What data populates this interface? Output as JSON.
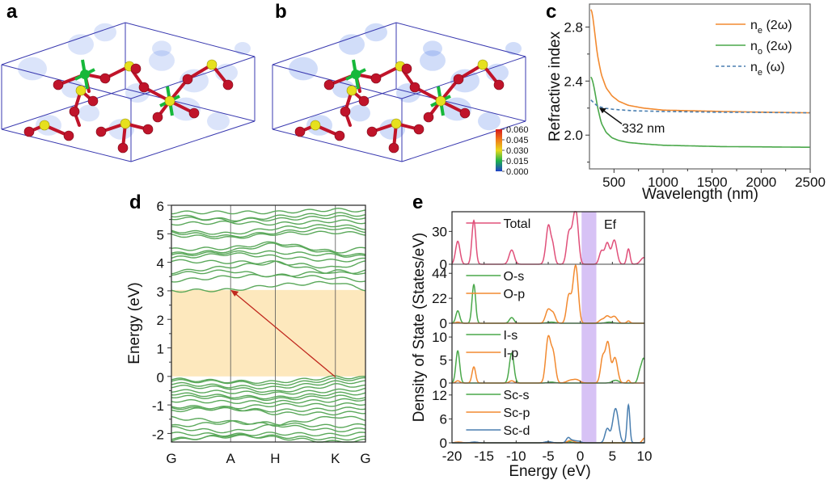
{
  "figure": {
    "panels": {
      "a": {
        "label": "a"
      },
      "b": {
        "label": "b"
      },
      "c": {
        "label": "c"
      },
      "d": {
        "label": "d"
      },
      "e": {
        "label": "e"
      }
    },
    "colorbar": {
      "ticks": [
        "0.060",
        "0.045",
        "0.030",
        "0.015",
        "0.000"
      ],
      "colors": [
        "#d7191c",
        "#f07a1a",
        "#e8d81c",
        "#1db34a",
        "#2040c8"
      ]
    },
    "atom_colors": {
      "O": "#c0142a",
      "I": "#e6e01e",
      "Sc": "#16b83a",
      "box": "#3a3ab0",
      "density": "#5a86e8"
    }
  },
  "chart_data": [
    {
      "id": "c",
      "type": "line",
      "title": "",
      "xlabel": "Wavelength (nm)",
      "ylabel": "Refractive index",
      "xlim": [
        250,
        2500
      ],
      "ylim": [
        1.75,
        2.97
      ],
      "xticks": [
        500,
        1000,
        1500,
        2000,
        2500
      ],
      "xtick_labels": [
        "500",
        "1000",
        "1500",
        "2000",
        "2500"
      ],
      "yticks": [
        2.0,
        2.4,
        2.8
      ],
      "ytick_labels": [
        "2.0",
        "2.4",
        "2.8"
      ],
      "legend_position": "top-right",
      "series": [
        {
          "name": "n_e (2ω)",
          "label_main": "n",
          "label_sub": "e",
          "label_rest": " (2ω)",
          "color": "#f28a30",
          "dash": false,
          "x": [
            265,
            280,
            300,
            330,
            370,
            420,
            480,
            550,
            650,
            800,
            1000,
            1300,
            1600,
            2000,
            2500
          ],
          "y": [
            2.93,
            2.9,
            2.78,
            2.6,
            2.45,
            2.35,
            2.29,
            2.25,
            2.22,
            2.2,
            2.185,
            2.18,
            2.175,
            2.17,
            2.165
          ]
        },
        {
          "name": "n_o (2ω)",
          "label_main": "n",
          "label_sub": "o",
          "label_rest": " (2ω)",
          "color": "#4aa84a",
          "dash": false,
          "x": [
            265,
            280,
            300,
            332,
            370,
            420,
            480,
            550,
            650,
            800,
            1000,
            1300,
            1600,
            2000,
            2500
          ],
          "y": [
            2.43,
            2.41,
            2.34,
            2.21,
            2.09,
            2.02,
            1.98,
            1.96,
            1.945,
            1.935,
            1.925,
            1.92,
            1.915,
            1.913,
            1.91
          ]
        },
        {
          "name": "n_e (ω)",
          "label_main": "n",
          "label_sub": "e",
          "label_rest": " (ω)",
          "color": "#4a7fb0",
          "dash": true,
          "x": [
            265,
            300,
            332,
            400,
            500,
            700,
            1000,
            1500,
            2000,
            2500
          ],
          "y": [
            2.26,
            2.235,
            2.215,
            2.2,
            2.19,
            2.18,
            2.175,
            2.17,
            2.168,
            2.165
          ]
        }
      ],
      "annotations": [
        {
          "text": "332 nm",
          "x": 332,
          "y": 2.215
        }
      ]
    },
    {
      "id": "d",
      "type": "line",
      "title": "",
      "xlabel": "",
      "ylabel": "Energy (eV)",
      "ylim": [
        -2.3,
        6
      ],
      "yticks": [
        -2,
        -1,
        0,
        1,
        2,
        3,
        4,
        5,
        6
      ],
      "ytick_labels": [
        "-2",
        "-1",
        "0",
        "1",
        "2",
        "3",
        "4",
        "5",
        "6"
      ],
      "kpoints": [
        "G",
        "A",
        "H",
        "K",
        "G"
      ],
      "kpoint_positions": [
        0,
        0.305,
        0.535,
        0.845,
        1.0
      ],
      "band_gap": {
        "from": 0,
        "to": 3.03,
        "color": "#fde8bd"
      },
      "transition_arrow": {
        "from_k": "K",
        "from_e": -0.02,
        "to_k": "A",
        "to_e": 3.03,
        "color": "#c0281e"
      },
      "band_color": "#5aa85a",
      "conduction_bands_at_kpoints": [
        [
          3.0,
          3.03,
          3.2,
          3.3,
          3.05
        ],
        [
          3.35,
          3.5,
          3.55,
          3.45,
          3.35
        ],
        [
          3.6,
          3.7,
          3.5,
          3.7,
          3.6
        ],
        [
          3.65,
          3.85,
          4.0,
          3.6,
          3.7
        ],
        [
          4.05,
          4.0,
          4.0,
          3.8,
          4.0
        ],
        [
          4.15,
          4.3,
          4.2,
          4.05,
          4.1
        ],
        [
          4.25,
          4.35,
          4.35,
          4.25,
          4.2
        ],
        [
          4.3,
          4.4,
          4.65,
          4.3,
          4.25
        ],
        [
          4.45,
          4.5,
          4.7,
          4.35,
          4.5
        ],
        [
          4.95,
          4.85,
          5.0,
          5.05,
          5.0
        ],
        [
          5.05,
          4.9,
          5.05,
          5.2,
          5.1
        ],
        [
          5.1,
          5.0,
          5.2,
          5.3,
          5.2
        ],
        [
          5.35,
          5.4,
          5.35,
          5.45,
          5.4
        ],
        [
          5.55,
          5.5,
          5.5,
          5.6,
          5.55
        ],
        [
          5.65,
          5.45,
          5.6,
          5.7,
          5.65
        ],
        [
          5.75,
          5.75,
          5.75,
          5.85,
          5.8
        ]
      ],
      "valence_bands_at_kpoints": [
        [
          -0.1,
          -0.18,
          -0.2,
          -0.02,
          -0.05
        ],
        [
          -0.15,
          -0.2,
          -0.3,
          -0.1,
          -0.1
        ],
        [
          -0.25,
          -0.35,
          -0.4,
          -0.2,
          -0.2
        ],
        [
          -0.35,
          -0.4,
          -0.55,
          -0.3,
          -0.35
        ],
        [
          -0.5,
          -0.55,
          -0.6,
          -0.5,
          -0.45
        ],
        [
          -0.6,
          -0.7,
          -0.75,
          -0.6,
          -0.6
        ],
        [
          -0.7,
          -0.75,
          -0.8,
          -0.7,
          -0.75
        ],
        [
          -0.85,
          -0.9,
          -0.9,
          -0.85,
          -0.8
        ],
        [
          -1.05,
          -1.1,
          -1.0,
          -1.0,
          -0.95
        ],
        [
          -1.1,
          -1.15,
          -1.2,
          -1.15,
          -1.1
        ],
        [
          -1.2,
          -1.1,
          -1.3,
          -1.3,
          -1.25
        ],
        [
          -1.45,
          -1.6,
          -1.7,
          -1.4,
          -1.5
        ],
        [
          -1.75,
          -1.6,
          -1.65,
          -1.75,
          -1.7
        ],
        [
          -1.8,
          -1.95,
          -1.7,
          -1.9,
          -1.85
        ],
        [
          -2.0,
          -2.05,
          -2.0,
          -2.05,
          -2.0
        ],
        [
          -2.2,
          -2.1,
          -2.1,
          -2.2,
          -2.15
        ],
        [
          -2.25,
          -2.05,
          -2.15,
          -2.3,
          -2.25
        ]
      ]
    },
    {
      "id": "e",
      "type": "line",
      "title": "",
      "xlabel": "Energy (eV)",
      "ylabel": "Density of State (States/eV)",
      "xlim": [
        -20,
        10
      ],
      "xticks": [
        -20,
        -15,
        -10,
        -5,
        0,
        5,
        10
      ],
      "xtick_labels": [
        "-20",
        "-15",
        "-10",
        "-5",
        "0",
        "5",
        "10"
      ],
      "gap_band": {
        "from": 0.2,
        "to": 2.5,
        "color": "#d7c2f5",
        "label": "Ef"
      },
      "subplots": [
        {
          "name": "total",
          "ylim": [
            0,
            48
          ],
          "yticks": [
            0,
            30
          ],
          "ytick_labels": [
            "0",
            "30"
          ],
          "series": [
            {
              "name": "Total",
              "color": "#e0507a",
              "peaks": [
                [
                  -19.1,
                  21,
                  0.35
                ],
                [
                  -16.6,
                  40,
                  0.3
                ],
                [
                  -10.7,
                  13,
                  0.4
                ],
                [
                  -5.2,
                  14,
                  0.35
                ],
                [
                  -4.9,
                  24,
                  0.3
                ],
                [
                  -4.3,
                  17,
                  0.3
                ],
                [
                  -1.8,
                  27,
                  0.35
                ],
                [
                  -1.1,
                  24,
                  0.35
                ],
                [
                  -0.6,
                  39,
                  0.35
                ],
                [
                  3.3,
                  12,
                  0.35
                ],
                [
                  4.2,
                  19,
                  0.35
                ],
                [
                  5.3,
                  22,
                  0.4
                ],
                [
                  7.5,
                  14,
                  0.25
                ],
                [
                  9.9,
                  6,
                  0.5
                ]
              ]
            }
          ]
        },
        {
          "name": "O",
          "ylim": [
            0,
            52
          ],
          "yticks": [
            0,
            22,
            44
          ],
          "ytick_labels": [
            "0",
            "22",
            "44"
          ],
          "series": [
            {
              "name": "O-s",
              "color": "#4aa84a",
              "peaks": [
                [
                  -19.1,
                  11,
                  0.3
                ],
                [
                  -16.6,
                  34,
                  0.28
                ],
                [
                  -10.7,
                  5,
                  0.35
                ],
                [
                  -4.5,
                  1,
                  0.6
                ],
                [
                  4.5,
                  1,
                  0.5
                ]
              ]
            },
            {
              "name": "O-p",
              "color": "#f28a30",
              "peaks": [
                [
                  -19.1,
                  1,
                  0.3
                ],
                [
                  -5.0,
                  12,
                  0.4
                ],
                [
                  -4.2,
                  8,
                  0.35
                ],
                [
                  -1.8,
                  24,
                  0.35
                ],
                [
                  -1.0,
                  22,
                  0.35
                ],
                [
                  -0.6,
                  37,
                  0.35
                ],
                [
                  3.3,
                  3,
                  0.4
                ],
                [
                  4.2,
                  6,
                  0.4
                ],
                [
                  5.3,
                  6,
                  0.45
                ],
                [
                  7.5,
                  2,
                  0.25
                ]
              ]
            }
          ]
        },
        {
          "name": "I",
          "ylim": [
            0,
            13
          ],
          "yticks": [
            0,
            5,
            10
          ],
          "ytick_labels": [
            "0",
            "5",
            "10"
          ],
          "series": [
            {
              "name": "I-s",
              "color": "#4aa84a",
              "peaks": [
                [
                  -19.1,
                  7,
                  0.3
                ],
                [
                  -10.7,
                  6.5,
                  0.35
                ],
                [
                  -4.5,
                  0.2,
                  0.5
                ],
                [
                  5.5,
                  0.6,
                  0.5
                ],
                [
                  9.3,
                  2.5,
                  0.3
                ],
                [
                  9.9,
                  5,
                  0.3
                ]
              ]
            },
            {
              "name": "I-p",
              "color": "#f28a30",
              "peaks": [
                [
                  -19.1,
                  0.5,
                  0.3
                ],
                [
                  -16.6,
                  3.5,
                  0.28
                ],
                [
                  -10.7,
                  0.5,
                  0.35
                ],
                [
                  -5.0,
                  9.8,
                  0.38
                ],
                [
                  -4.2,
                  6,
                  0.35
                ],
                [
                  -1.5,
                  0.6,
                  0.6
                ],
                [
                  -0.5,
                  0.6,
                  0.5
                ],
                [
                  3.5,
                  5.5,
                  0.35
                ],
                [
                  4.3,
                  8.5,
                  0.35
                ],
                [
                  5.4,
                  5.5,
                  0.4
                ],
                [
                  7.5,
                  0.6,
                  0.2
                ]
              ]
            }
          ]
        },
        {
          "name": "Sc",
          "ylim": [
            0,
            15
          ],
          "yticks": [
            0,
            6,
            12
          ],
          "ytick_labels": [
            "0",
            "6",
            "12"
          ],
          "series": [
            {
              "name": "Sc-s",
              "color": "#4aa84a",
              "peaks": [
                [
                  -5.0,
                  0.2,
                  0.5
                ],
                [
                  -1.8,
                  0.3,
                  0.4
                ]
              ]
            },
            {
              "name": "Sc-p",
              "color": "#f28a30",
              "peaks": [
                [
                  -19.0,
                  0.2,
                  0.5
                ],
                [
                  -1.5,
                  0.6,
                  0.5
                ],
                [
                  10,
                  1.2,
                  0.3
                ]
              ]
            },
            {
              "name": "Sc-d",
              "color": "#4a7fb0",
              "peaks": [
                [
                  -16.5,
                  0.2,
                  0.5
                ],
                [
                  -5.0,
                  0.3,
                  0.5
                ],
                [
                  -1.9,
                  1.2,
                  0.3
                ],
                [
                  -1.2,
                  0.6,
                  0.4
                ],
                [
                  -0.3,
                  0.4,
                  0.4
                ],
                [
                  4.2,
                  3.5,
                  0.35
                ],
                [
                  5.5,
                  8.6,
                  0.45
                ],
                [
                  7.5,
                  9.5,
                  0.22
                ]
              ]
            }
          ]
        }
      ]
    }
  ]
}
